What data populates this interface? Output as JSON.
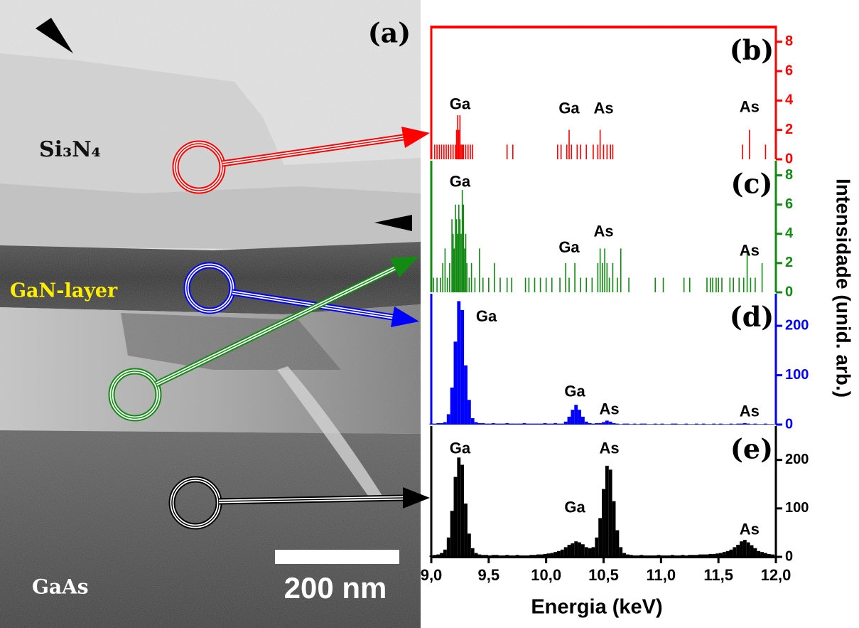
{
  "image": {
    "label": "(a)",
    "regions": [
      "Si₃N₄",
      "GaN-layer",
      "GaAs"
    ],
    "scale_bar": "200 nm"
  },
  "figure": {
    "xlabel": "Energia (keV)",
    "ylabel": "Intensidade (unid. arb.)"
  },
  "chart_data": [
    {
      "type": "bar",
      "label": "(b)",
      "color": "#ff0000",
      "xlim": [
        9,
        12
      ],
      "ylim": [
        0,
        9
      ],
      "yticks": [
        0,
        2,
        4,
        6,
        8
      ],
      "x": [
        9.03,
        9.05,
        9.07,
        9.09,
        9.11,
        9.13,
        9.15,
        9.17,
        9.19,
        9.21,
        9.22,
        9.23,
        9.24,
        9.25,
        9.26,
        9.27,
        9.28,
        9.3,
        9.32,
        9.34,
        9.36,
        9.66,
        9.71,
        10.1,
        10.13,
        10.18,
        10.2,
        10.22,
        10.27,
        10.3,
        10.35,
        10.41,
        10.45,
        10.47,
        10.5,
        10.53,
        10.56,
        10.58,
        11.71,
        11.77,
        11.91
      ],
      "values": [
        1,
        1,
        1,
        1,
        1,
        1,
        1,
        1,
        1,
        1,
        2,
        3,
        2,
        3,
        1,
        1,
        1,
        1,
        1,
        1,
        1,
        1,
        1,
        1,
        1,
        1,
        2,
        1,
        1,
        1,
        1,
        1,
        1,
        2,
        1,
        1,
        1,
        1,
        1,
        2,
        1
      ],
      "annotations": [
        {
          "text": "Ga",
          "x": 9.25,
          "y": 3.7
        },
        {
          "text": "Ga",
          "x": 10.2,
          "y": 3.4
        },
        {
          "text": "As",
          "x": 10.5,
          "y": 3.4
        },
        {
          "text": "As",
          "x": 11.77,
          "y": 3.5
        }
      ]
    },
    {
      "type": "bar",
      "label": "(c)",
      "color": "#138a13",
      "xlim": [
        9,
        12
      ],
      "ylim": [
        0,
        9
      ],
      "yticks": [
        0,
        2,
        4,
        6,
        8
      ],
      "x": [
        9.02,
        9.05,
        9.08,
        9.1,
        9.12,
        9.14,
        9.16,
        9.18,
        9.19,
        9.2,
        9.21,
        9.22,
        9.23,
        9.24,
        9.25,
        9.26,
        9.27,
        9.28,
        9.29,
        9.3,
        9.31,
        9.33,
        9.35,
        9.38,
        9.42,
        9.45,
        9.5,
        9.55,
        9.6,
        9.66,
        9.7,
        9.82,
        9.85,
        9.9,
        9.95,
        10.0,
        10.05,
        10.12,
        10.17,
        10.2,
        10.25,
        10.3,
        10.35,
        10.4,
        10.45,
        10.47,
        10.49,
        10.51,
        10.53,
        10.55,
        10.58,
        10.62,
        10.65,
        10.72,
        10.95,
        11.02,
        11.2,
        11.25,
        11.4,
        11.43,
        11.45,
        11.48,
        11.5,
        11.53,
        11.6,
        11.63,
        11.68,
        11.72,
        11.75,
        11.78,
        11.82,
        11.88
      ],
      "values": [
        1,
        1,
        1,
        2,
        3,
        1,
        2,
        5,
        4,
        3,
        6,
        5,
        4,
        6,
        5,
        4,
        7,
        6,
        3,
        4,
        2,
        1,
        2,
        1,
        3,
        1,
        1,
        2,
        1,
        1,
        1,
        1,
        1,
        1,
        1,
        1,
        1,
        1,
        2,
        1,
        2,
        1,
        1,
        1,
        2,
        3,
        2,
        3,
        2,
        1,
        2,
        1,
        3,
        1,
        1,
        1,
        1,
        1,
        1,
        1,
        1,
        1,
        1,
        1,
        1,
        1,
        1,
        1,
        3,
        1,
        1,
        2
      ],
      "annotations": [
        {
          "text": "Ga",
          "x": 9.25,
          "y": 7.5
        },
        {
          "text": "Ga",
          "x": 10.2,
          "y": 3.0
        },
        {
          "text": "As",
          "x": 10.5,
          "y": 4.1
        },
        {
          "text": "As",
          "x": 11.77,
          "y": 2.8
        }
      ]
    },
    {
      "type": "bar",
      "label": "(d)",
      "color": "#0000ff",
      "xlim": [
        9,
        12
      ],
      "ylim": [
        0,
        265
      ],
      "yticks": [
        0,
        100,
        200
      ],
      "x": [
        9.0,
        9.03,
        9.06,
        9.09,
        9.12,
        9.15,
        9.18,
        9.21,
        9.24,
        9.27,
        9.3,
        9.33,
        9.36,
        9.39,
        9.42,
        9.45,
        9.48,
        9.51,
        9.54,
        9.57,
        9.6,
        9.63,
        9.66,
        9.69,
        9.72,
        9.75,
        9.78,
        9.81,
        9.84,
        9.87,
        9.9,
        9.93,
        9.96,
        9.99,
        10.02,
        10.05,
        10.08,
        10.11,
        10.14,
        10.17,
        10.2,
        10.23,
        10.26,
        10.29,
        10.32,
        10.35,
        10.38,
        10.41,
        10.44,
        10.47,
        10.5,
        10.53,
        10.56,
        10.59,
        10.62,
        10.65,
        10.68,
        10.71,
        10.74,
        10.77,
        10.8,
        10.83,
        10.86,
        10.89,
        10.92,
        10.95,
        10.98,
        11.01,
        11.04,
        11.07,
        11.1,
        11.13,
        11.16,
        11.19,
        11.22,
        11.25,
        11.28,
        11.31,
        11.34,
        11.37,
        11.4,
        11.43,
        11.46,
        11.49,
        11.52,
        11.55,
        11.58,
        11.61,
        11.64,
        11.67,
        11.7,
        11.73,
        11.76,
        11.79,
        11.82,
        11.85,
        11.88,
        11.91,
        11.94,
        11.97
      ],
      "values": [
        2,
        2,
        3,
        3,
        5,
        21,
        75,
        168,
        250,
        232,
        120,
        50,
        13,
        5,
        3,
        3,
        2,
        2,
        3,
        2,
        2,
        2,
        3,
        2,
        2,
        2,
        2,
        3,
        2,
        2,
        2,
        2,
        2,
        3,
        2,
        2,
        3,
        2,
        2,
        6,
        16,
        30,
        40,
        30,
        16,
        6,
        3,
        2,
        3,
        3,
        5,
        8,
        6,
        3,
        2,
        1,
        2,
        2,
        1,
        2,
        1,
        2,
        2,
        1,
        1,
        2,
        1,
        2,
        1,
        1,
        2,
        2,
        1,
        1,
        2,
        1,
        1,
        2,
        1,
        2,
        1,
        1,
        2,
        1,
        2,
        1,
        1,
        2,
        1,
        2,
        2,
        3,
        2,
        1,
        2,
        1,
        1,
        2,
        1,
        1
      ],
      "annotations": [
        {
          "text": "Ga",
          "x": 9.48,
          "y": 217
        },
        {
          "text": "Ga",
          "x": 10.25,
          "y": 65
        },
        {
          "text": "As",
          "x": 10.55,
          "y": 29
        },
        {
          "text": "As",
          "x": 11.77,
          "y": 25
        }
      ]
    },
    {
      "type": "bar",
      "label": "(e)",
      "color": "#000000",
      "xlim": [
        9,
        12
      ],
      "ylim": [
        0,
        270
      ],
      "yticks": [
        0,
        100,
        200
      ],
      "xticks": [
        {
          "value": 9,
          "label": "9,0"
        },
        {
          "value": 9.5,
          "label": "9,5"
        },
        {
          "value": 10,
          "label": "10,0"
        },
        {
          "value": 10.5,
          "label": "10,5"
        },
        {
          "value": 11,
          "label": "11,0"
        },
        {
          "value": 11.5,
          "label": "11,5"
        },
        {
          "value": 12,
          "label": "12,0"
        }
      ],
      "x": [
        9.0,
        9.03,
        9.06,
        9.09,
        9.12,
        9.15,
        9.18,
        9.21,
        9.24,
        9.27,
        9.3,
        9.33,
        9.36,
        9.39,
        9.42,
        9.45,
        9.48,
        9.51,
        9.54,
        9.57,
        9.6,
        9.63,
        9.66,
        9.69,
        9.72,
        9.75,
        9.78,
        9.81,
        9.84,
        9.87,
        9.9,
        9.93,
        9.96,
        9.99,
        10.02,
        10.05,
        10.08,
        10.11,
        10.14,
        10.17,
        10.2,
        10.23,
        10.26,
        10.29,
        10.32,
        10.35,
        10.38,
        10.41,
        10.44,
        10.47,
        10.5,
        10.53,
        10.56,
        10.59,
        10.62,
        10.65,
        10.68,
        10.71,
        10.74,
        10.77,
        10.8,
        10.83,
        10.86,
        10.89,
        10.92,
        10.95,
        10.98,
        11.01,
        11.04,
        11.07,
        11.1,
        11.13,
        11.16,
        11.19,
        11.22,
        11.25,
        11.28,
        11.31,
        11.34,
        11.37,
        11.4,
        11.43,
        11.46,
        11.49,
        11.52,
        11.55,
        11.58,
        11.61,
        11.64,
        11.67,
        11.7,
        11.73,
        11.76,
        11.79,
        11.82,
        11.85,
        11.88,
        11.91,
        11.94,
        11.97
      ],
      "values": [
        3,
        4,
        5,
        8,
        15,
        40,
        95,
        165,
        205,
        190,
        110,
        48,
        18,
        8,
        5,
        4,
        4,
        3,
        4,
        4,
        3,
        3,
        4,
        3,
        3,
        4,
        3,
        3,
        3,
        4,
        4,
        5,
        5,
        6,
        7,
        8,
        10,
        12,
        15,
        20,
        25,
        28,
        32,
        30,
        26,
        20,
        18,
        20,
        40,
        80,
        140,
        188,
        180,
        115,
        55,
        20,
        8,
        5,
        4,
        3,
        3,
        4,
        3,
        3,
        3,
        3,
        4,
        3,
        3,
        3,
        4,
        3,
        3,
        4,
        3,
        4,
        4,
        4,
        5,
        5,
        5,
        6,
        6,
        7,
        8,
        10,
        12,
        15,
        20,
        25,
        32,
        35,
        30,
        24,
        18,
        12,
        10,
        8,
        6,
        5
      ],
      "annotations": [
        {
          "text": "Ga",
          "x": 9.25,
          "y": 222
        },
        {
          "text": "As",
          "x": 10.55,
          "y": 222
        },
        {
          "text": "Ga",
          "x": 10.25,
          "y": 100
        },
        {
          "text": "As",
          "x": 11.77,
          "y": 55
        }
      ]
    }
  ]
}
